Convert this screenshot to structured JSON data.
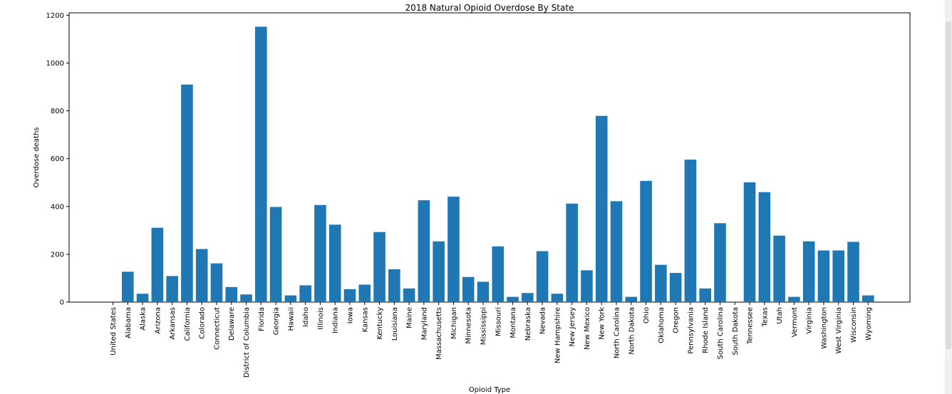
{
  "chart_data": {
    "type": "bar",
    "title": "2018 Natural Opioid Overdose By State",
    "xlabel": "Opioid Type",
    "ylabel": "Overdose deaths",
    "ylim": [
      0,
      1210
    ],
    "yticks": [
      0,
      200,
      400,
      600,
      800,
      1000,
      1200
    ],
    "grid": false,
    "color": "#1f77b4",
    "categories": [
      "United States",
      "Alabama",
      "Alaska",
      "Arizona",
      "Arkansas",
      "California",
      "Colorado",
      "Connecticut",
      "Delaware",
      "District of Columbia",
      "Florida",
      "Georgia",
      "Hawaii",
      "Idaho",
      "Illinois",
      "Indiana",
      "Iowa",
      "Kansas",
      "Kentucky",
      "Louisiana",
      "Maine",
      "Maryland",
      "Massachusetts",
      "Michigan",
      "Minnesota",
      "Mississippi",
      "Missouri",
      "Montana",
      "Nebraska",
      "Nevada",
      "New Hampshire",
      "New Jersey",
      "New Mexico",
      "New York",
      "North Carolina",
      "North Dakota",
      "Ohio",
      "Oklahoma",
      "Oregon",
      "Pennsylvania",
      "Rhode Island",
      "South Carolina",
      "South Dakota",
      "Tennessee",
      "Texas",
      "Utah",
      "Vermont",
      "Virginia",
      "Washington",
      "West Virginia",
      "Wisconsin",
      "Wyoming"
    ],
    "values": [
      0,
      127,
      35,
      311,
      109,
      910,
      222,
      162,
      63,
      32,
      1152,
      398,
      28,
      70,
      406,
      324,
      54,
      73,
      293,
      137,
      57,
      426,
      254,
      441,
      105,
      85,
      233,
      22,
      38,
      213,
      35,
      412,
      133,
      779,
      422,
      22,
      507,
      156,
      122,
      596,
      57,
      330,
      0,
      501,
      460,
      278,
      22,
      254,
      216,
      216,
      252,
      28
    ]
  }
}
